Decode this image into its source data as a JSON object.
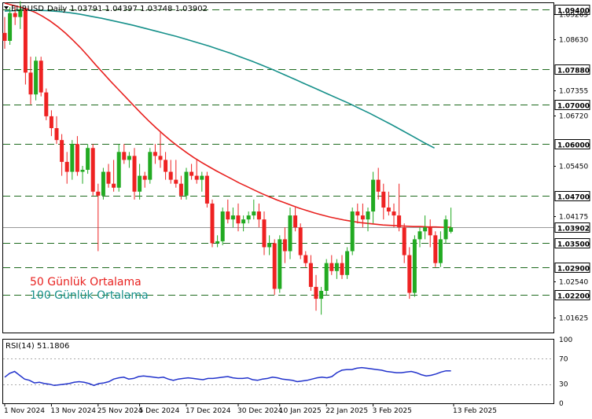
{
  "header": {
    "symbol": "EURUSD",
    "timeframe": "Daily",
    "ohlc": "1.03791 1.04397 1.03748 1.03902"
  },
  "rsi_header": "RSI(14) 51.1806",
  "legend": {
    "ma50": "50 Günlük Ortalama",
    "ma100": "100 Günlük Ortalama"
  },
  "colors": {
    "bull": "#22aa22",
    "bear": "#ee2222",
    "ma50": "#e8211f",
    "ma100": "#16908a",
    "rsi": "#2233cc",
    "level": "#1e6a1e",
    "current_price": "#999999"
  },
  "chart_data": [
    {
      "type": "candlestick",
      "ylim": [
        1.0125,
        1.0955
      ],
      "y_ticks": [
        "1.09265",
        "1.08630",
        "1.07355",
        "1.06720",
        "1.05450",
        "1.04175",
        "1.02540",
        "1.01625"
      ],
      "price_levels": [
        "1.09400",
        "1.07880",
        "1.07000",
        "1.06000",
        "1.04700",
        "1.03500",
        "1.02900",
        "1.02200"
      ],
      "current_price": "1.03902",
      "x_labels": [
        "1 Nov 2024",
        "13 Nov 2024",
        "25 Nov 2024",
        "5 Dec 2024",
        "17 Dec 2024",
        "30 Dec 2024",
        "10 Jan 2025",
        "22 Jan 2025",
        "3 Feb 2025",
        "13 Feb 2025"
      ],
      "candles": [
        [
          1.088,
          1.092,
          1.084,
          1.086
        ],
        [
          1.086,
          1.0945,
          1.085,
          1.093
        ],
        [
          1.093,
          1.095,
          1.09,
          1.092
        ],
        [
          1.092,
          1.096,
          1.089,
          1.094
        ],
        [
          1.094,
          1.0945,
          1.075,
          1.078
        ],
        [
          1.078,
          1.082,
          1.07,
          1.0725
        ],
        [
          1.0725,
          1.082,
          1.071,
          1.081
        ],
        [
          1.081,
          1.082,
          1.072,
          1.073
        ],
        [
          1.073,
          1.074,
          1.066,
          1.067
        ],
        [
          1.067,
          1.0685,
          1.062,
          1.064
        ],
        [
          1.064,
          1.067,
          1.06,
          1.061
        ],
        [
          1.061,
          1.0625,
          1.052,
          1.0555
        ],
        [
          1.0555,
          1.058,
          1.05,
          1.053
        ],
        [
          1.053,
          1.061,
          1.051,
          1.06
        ],
        [
          1.06,
          1.062,
          1.052,
          1.053
        ],
        [
          1.053,
          1.0545,
          1.05,
          1.0535
        ],
        [
          1.0535,
          1.06,
          1.0525,
          1.059
        ],
        [
          1.059,
          1.06,
          1.047,
          1.048
        ],
        [
          1.048,
          1.05,
          1.033,
          1.047
        ],
        [
          1.047,
          1.054,
          1.046,
          1.053
        ],
        [
          1.053,
          1.055,
          1.049,
          1.05
        ],
        [
          1.05,
          1.056,
          1.048,
          1.049
        ],
        [
          1.049,
          1.06,
          1.048,
          1.058
        ],
        [
          1.058,
          1.06,
          1.055,
          1.056
        ],
        [
          1.056,
          1.058,
          1.054,
          1.057
        ],
        [
          1.057,
          1.059,
          1.046,
          1.048
        ],
        [
          1.048,
          1.055,
          1.046,
          1.052
        ],
        [
          1.052,
          1.053,
          1.049,
          1.051
        ],
        [
          1.051,
          1.059,
          1.05,
          1.058
        ],
        [
          1.058,
          1.06,
          1.055,
          1.057
        ],
        [
          1.057,
          1.063,
          1.054,
          1.056
        ],
        [
          1.056,
          1.058,
          1.051,
          1.053
        ],
        [
          1.053,
          1.056,
          1.05,
          1.051
        ],
        [
          1.051,
          1.056,
          1.049,
          1.05
        ],
        [
          1.05,
          1.052,
          1.046,
          1.047
        ],
        [
          1.047,
          1.054,
          1.046,
          1.053
        ],
        [
          1.053,
          1.055,
          1.051,
          1.052
        ],
        [
          1.052,
          1.056,
          1.05,
          1.051
        ],
        [
          1.051,
          1.053,
          1.048,
          1.052
        ],
        [
          1.052,
          1.053,
          1.044,
          1.045
        ],
        [
          1.045,
          1.046,
          1.034,
          1.035
        ],
        [
          1.035,
          1.037,
          1.034,
          1.0355
        ],
        [
          1.0355,
          1.044,
          1.0345,
          1.043
        ],
        [
          1.043,
          1.046,
          1.04,
          1.041
        ],
        [
          1.041,
          1.044,
          1.039,
          1.042
        ],
        [
          1.042,
          1.045,
          1.038,
          1.04
        ],
        [
          1.04,
          1.042,
          1.038,
          1.041
        ],
        [
          1.041,
          1.043,
          1.04,
          1.042
        ],
        [
          1.042,
          1.046,
          1.041,
          1.043
        ],
        [
          1.043,
          1.045,
          1.039,
          1.041
        ],
        [
          1.041,
          1.043,
          1.032,
          1.034
        ],
        [
          1.034,
          1.037,
          1.032,
          1.035
        ],
        [
          1.035,
          1.036,
          1.022,
          1.0235
        ],
        [
          1.0235,
          1.037,
          1.0225,
          1.036
        ],
        [
          1.036,
          1.039,
          1.03,
          1.033
        ],
        [
          1.033,
          1.044,
          1.031,
          1.042
        ],
        [
          1.042,
          1.044,
          1.038,
          1.039
        ],
        [
          1.039,
          1.04,
          1.031,
          1.032
        ],
        [
          1.032,
          1.033,
          1.029,
          1.03
        ],
        [
          1.03,
          1.032,
          1.023,
          1.024
        ],
        [
          1.024,
          1.027,
          1.018,
          1.021
        ],
        [
          1.021,
          1.024,
          1.017,
          1.023
        ],
        [
          1.023,
          1.031,
          1.022,
          1.03
        ],
        [
          1.03,
          1.032,
          1.027,
          1.028
        ],
        [
          1.028,
          1.031,
          1.026,
          1.03
        ],
        [
          1.03,
          1.032,
          1.026,
          1.027
        ],
        [
          1.027,
          1.034,
          1.026,
          1.033
        ],
        [
          1.033,
          1.044,
          1.032,
          1.043
        ],
        [
          1.043,
          1.045,
          1.04,
          1.042
        ],
        [
          1.042,
          1.045,
          1.039,
          1.041
        ],
        [
          1.041,
          1.044,
          1.038,
          1.043
        ],
        [
          1.043,
          1.053,
          1.04,
          1.051
        ],
        [
          1.051,
          1.054,
          1.046,
          1.048
        ],
        [
          1.048,
          1.05,
          1.041,
          1.044
        ],
        [
          1.044,
          1.048,
          1.042,
          1.043
        ],
        [
          1.043,
          1.045,
          1.039,
          1.042
        ],
        [
          1.042,
          1.05,
          1.038,
          1.039
        ],
        [
          1.039,
          1.04,
          1.03,
          1.032
        ],
        [
          1.032,
          1.034,
          1.021,
          1.0225
        ],
        [
          1.0225,
          1.037,
          1.0215,
          1.036
        ],
        [
          1.036,
          1.039,
          1.034,
          1.038
        ],
        [
          1.038,
          1.042,
          1.036,
          1.039
        ],
        [
          1.039,
          1.041,
          1.034,
          1.037
        ],
        [
          1.037,
          1.038,
          1.029,
          1.03
        ],
        [
          1.03,
          1.038,
          1.029,
          1.036
        ],
        [
          1.036,
          1.042,
          1.035,
          1.041
        ],
        [
          1.0379,
          1.04397,
          1.03748,
          1.03902
        ]
      ],
      "series": [
        {
          "name": "50 Günlük Ortalama",
          "values": [
            1.0955,
            1.095,
            1.0945,
            1.094,
            1.0932,
            1.0922,
            1.091,
            1.0896,
            1.088,
            1.0862,
            1.0843,
            1.0822,
            1.08,
            1.0779,
            1.0758,
            1.0738,
            1.0718,
            1.0698,
            1.0678,
            1.0659,
            1.0641,
            1.0624,
            1.0608,
            1.0593,
            1.0579,
            1.0566,
            1.0554,
            1.0543,
            1.0532,
            1.0522,
            1.0512,
            1.0502,
            1.0493,
            1.0484,
            1.0475,
            1.0467,
            1.0459,
            1.0452,
            1.0445,
            1.0438,
            1.0432,
            1.0426,
            1.0421,
            1.0416,
            1.0412,
            1.0408,
            1.0405,
            1.0402,
            1.04,
            1.0398,
            1.0396,
            1.0395,
            1.0394,
            1.0393,
            1.0392,
            1.0392,
            1.0391,
            1.0391,
            1.039,
            1.039
          ]
        },
        {
          "name": "100 Günlük Ortalama",
          "values": [
            1.0935,
            1.0936,
            1.0937,
            1.0937,
            1.0936,
            1.0934,
            1.0931,
            1.0927,
            1.0922,
            1.0917,
            1.0911,
            1.0905,
            1.0899,
            1.0892,
            1.0885,
            1.0878,
            1.0871,
            1.0863,
            1.0855,
            1.0847,
            1.0838,
            1.0829,
            1.0819,
            1.0809,
            1.0798,
            1.0787,
            1.0775,
            1.0763,
            1.0751,
            1.0739,
            1.0727,
            1.0715,
            1.0703,
            1.069,
            1.0677,
            1.0663,
            1.0649,
            1.0634,
            1.0619,
            1.0604,
            1.059
          ]
        }
      ]
    },
    {
      "type": "line",
      "title": "RSI(14) 51.1806",
      "ylim": [
        0,
        100
      ],
      "y_ticks": [
        "100",
        "70",
        "30",
        "0"
      ],
      "series": [
        {
          "name": "RSI(14)",
          "values": [
            41,
            47,
            50,
            44,
            38,
            36,
            32,
            33,
            31,
            30,
            28,
            29,
            30,
            31,
            33,
            34,
            33,
            31,
            28,
            31,
            32,
            34,
            38,
            40,
            41,
            38,
            39,
            42,
            43,
            42,
            41,
            40,
            41,
            38,
            36,
            38,
            39,
            40,
            39,
            38,
            37,
            39,
            39,
            40,
            41,
            42,
            40,
            39,
            39,
            40,
            37,
            36,
            38,
            39,
            41,
            40,
            38,
            37,
            36,
            34,
            35,
            36,
            38,
            40,
            41,
            40,
            42,
            48,
            52,
            53,
            53,
            55,
            56,
            55,
            54,
            53,
            52,
            50,
            49,
            48,
            48,
            49,
            50,
            48,
            45,
            43,
            44,
            46,
            49,
            51,
            51
          ]
        }
      ]
    }
  ]
}
